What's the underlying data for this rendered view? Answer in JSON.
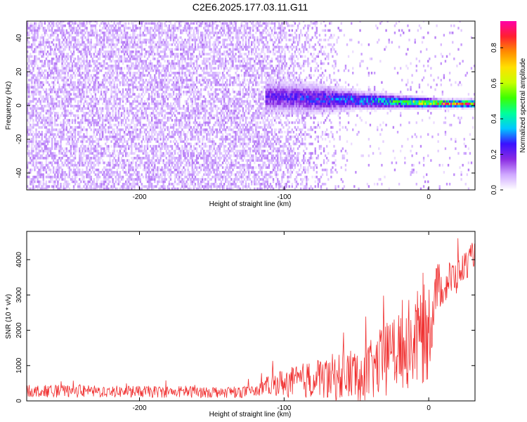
{
  "figure_title": "C2E6.2025.177.03.11.G11",
  "chart_data": [
    {
      "type": "heatmap",
      "title": "C2E6.2025.177.03.11.G11",
      "xlabel": "Height of straight line (km)",
      "ylabel": "Frequency (Hz)",
      "xlim": [
        -278,
        32
      ],
      "ylim": [
        -50,
        50
      ],
      "xticks": [
        -200,
        -100,
        0
      ],
      "yticks": [
        -40,
        -20,
        0,
        20,
        40
      ],
      "grid": false,
      "colorbar": {
        "label": "Normalized spectral amplitude",
        "range": [
          0,
          0.95
        ],
        "ticks": [
          0.0,
          0.2,
          0.4,
          0.6,
          0.8
        ],
        "colormap": [
          "#ffffff",
          "#cfa8ff",
          "#8a2be2",
          "#3a10ff",
          "#00c8ff",
          "#00ff9a",
          "#3dff00",
          "#c8ff00",
          "#ffe000",
          "#ff8c00",
          "#ff2030",
          "#ff00a8"
        ]
      },
      "noise_floor_amplitude": 0.1,
      "signal_onset_height_km": -113,
      "signal_band": [
        {
          "height_km": -110,
          "center_freq_hz": 4.5,
          "half_width_hz": 9,
          "peak_amplitude": 0.22
        },
        {
          "height_km": -80,
          "center_freq_hz": 3.5,
          "half_width_hz": 8,
          "peak_amplitude": 0.28
        },
        {
          "height_km": -50,
          "center_freq_hz": 2.5,
          "half_width_hz": 5,
          "peak_amplitude": 0.35
        },
        {
          "height_km": -20,
          "center_freq_hz": 1.5,
          "half_width_hz": 3.5,
          "peak_amplitude": 0.5
        },
        {
          "height_km": 10,
          "center_freq_hz": 0.5,
          "half_width_hz": 2,
          "peak_amplitude": 0.9
        },
        {
          "height_km": 30,
          "center_freq_hz": 0.5,
          "half_width_hz": 2,
          "peak_amplitude": 0.92
        }
      ]
    },
    {
      "type": "line",
      "xlabel": "Height of straight line (km)",
      "ylabel": "SNR (10 * v/v)",
      "xlim": [
        -278,
        32
      ],
      "ylim": [
        0,
        4800
      ],
      "xticks": [
        -200,
        -100,
        0
      ],
      "yticks": [
        0,
        1000,
        2000,
        3000,
        4000
      ],
      "grid": false,
      "series": [
        {
          "color": "#f03030",
          "x": [
            -278,
            -250,
            -200,
            -150,
            -120,
            -113,
            -105,
            -95,
            -80,
            -60,
            -40,
            -20,
            -10,
            0,
            5,
            10,
            20,
            32
          ],
          "y": [
            280,
            270,
            260,
            255,
            260,
            420,
            500,
            520,
            620,
            700,
            850,
            1500,
            1700,
            2000,
            3200,
            3300,
            3550,
            4200
          ],
          "spread": [
            220,
            220,
            210,
            210,
            210,
            300,
            450,
            550,
            700,
            900,
            1100,
            1500,
            1700,
            1800,
            900,
            800,
            650,
            450
          ]
        }
      ]
    }
  ]
}
